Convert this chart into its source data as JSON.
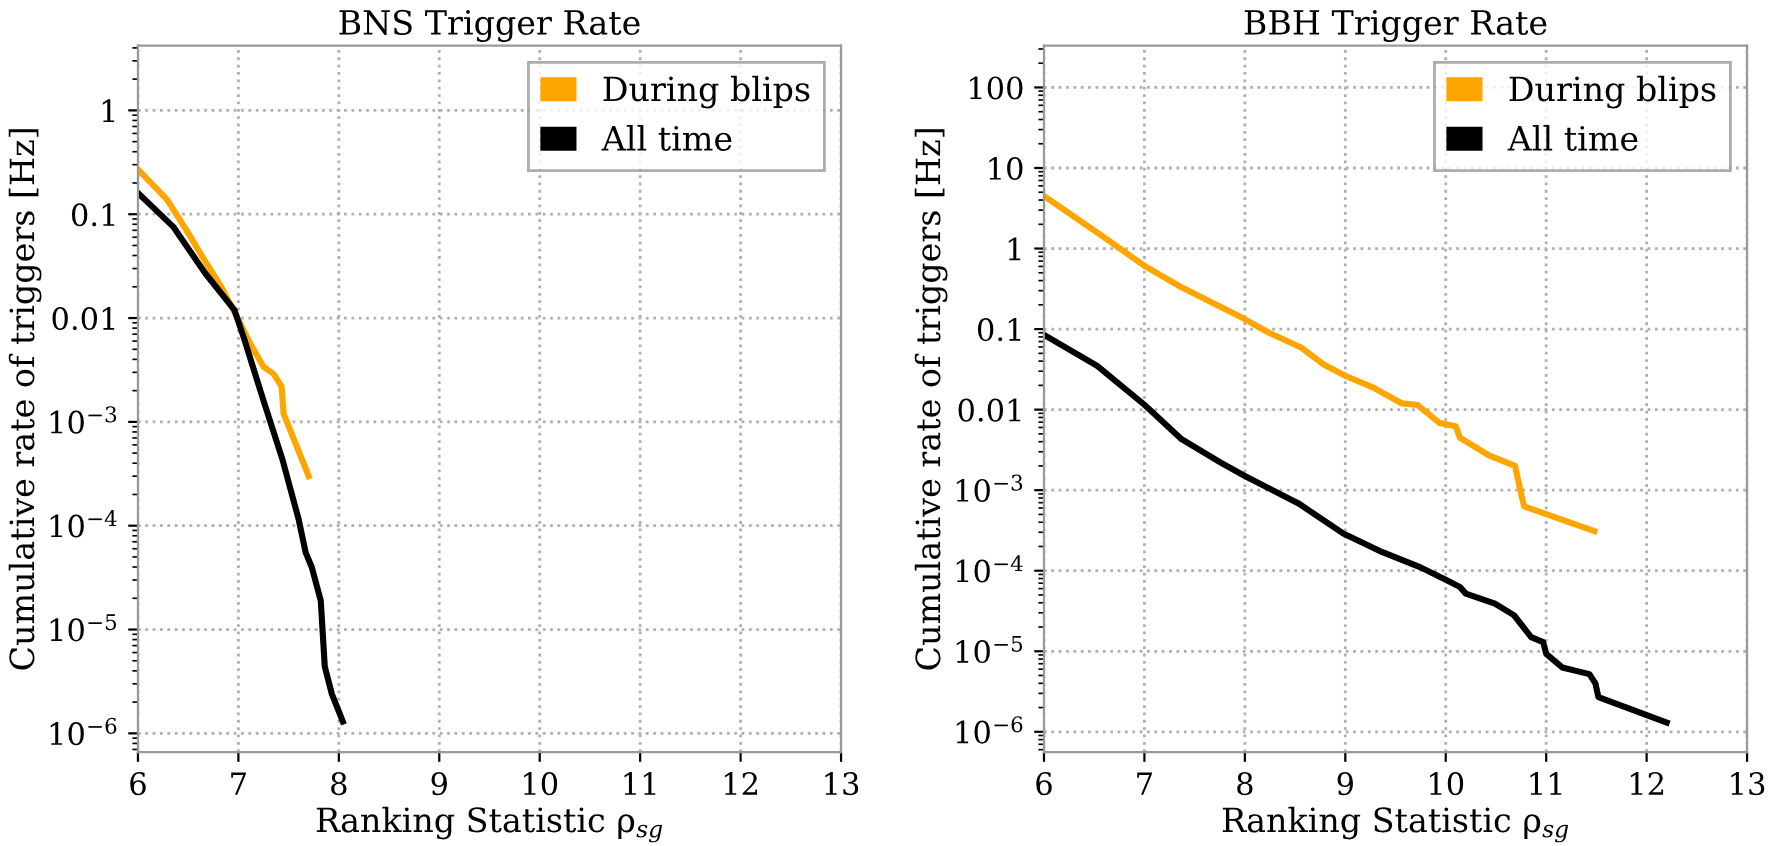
{
  "chart_data": [
    {
      "type": "line",
      "title": "BNS Trigger Rate",
      "xlabel": "Ranking Statistic ρ$_{sg}$",
      "ylabel": "Cumulative rate of triggers [Hz]",
      "log": "y",
      "grid": true,
      "legend": "top right",
      "line_style": "solid",
      "marker": "none",
      "xlim": [
        6,
        13
      ],
      "xticks": [
        6,
        7,
        8,
        9,
        10,
        11,
        12,
        13
      ],
      "ylim": [
        6.6e-07,
        4.2
      ],
      "yticks": [
        {
          "value": 1e-06,
          "label": "10$^{−6}$"
        },
        {
          "value": 1e-05,
          "label": "10$^{−5}$"
        },
        {
          "value": 0.0001,
          "label": "10$^{−4}$"
        },
        {
          "value": 0.001,
          "label": "10$^{−3}$"
        },
        0.01,
        0.1,
        1
      ],
      "series": [
        {
          "name": "During blips",
          "color": "#ffa500",
          "x": [
            6.0,
            6.29,
            6.48,
            6.64,
            6.83,
            7.0,
            7.13,
            7.25,
            7.35,
            7.43,
            7.45,
            7.7
          ],
          "values": [
            0.27,
            0.138,
            0.071,
            0.039,
            0.02,
            0.0096,
            0.0054,
            0.0034,
            0.0029,
            0.0022,
            0.0012,
            0.0003
          ]
        },
        {
          "name": "All time",
          "color": "#000000",
          "x": [
            6.0,
            6.35,
            6.67,
            6.96,
            7.06,
            7.25,
            7.44,
            7.6,
            7.67,
            7.73,
            7.82,
            7.86,
            7.93,
            8.04
          ],
          "values": [
            0.16,
            0.076,
            0.027,
            0.012,
            0.0062,
            0.0016,
            0.00043,
            0.000115,
            5.5e-05,
            4e-05,
            1.9e-05,
            4.4e-06,
            2.4e-06,
            1.3e-06
          ]
        }
      ]
    },
    {
      "type": "line",
      "title": "BBH Trigger Rate",
      "xlabel": "Ranking Statistic ρ$_{sg}$",
      "ylabel": "Cumulative rate of triggers [Hz]",
      "log": "y",
      "grid": true,
      "legend": "top right",
      "line_style": "solid",
      "marker": "none",
      "xlim": [
        6,
        13
      ],
      "xticks": [
        6,
        7,
        8,
        9,
        10,
        11,
        12,
        13
      ],
      "ylim": [
        5.6e-07,
        330
      ],
      "yticks": [
        {
          "value": 1e-06,
          "label": "10$^{−6}$"
        },
        {
          "value": 1e-05,
          "label": "10$^{−5}$"
        },
        {
          "value": 0.0001,
          "label": "10$^{−4}$"
        },
        {
          "value": 0.001,
          "label": "10$^{−3}$"
        },
        0.01,
        0.1,
        1,
        10,
        100
      ],
      "series": [
        {
          "name": "During blips",
          "color": "#ffa500",
          "x": [
            6.0,
            6.53,
            7.0,
            7.37,
            7.98,
            8.24,
            8.56,
            8.79,
            9.01,
            9.27,
            9.56,
            9.72,
            9.94,
            10.1,
            10.14,
            10.43,
            10.69,
            10.75,
            10.78,
            11.48
          ],
          "values": [
            4.5,
            1.58,
            0.61,
            0.33,
            0.137,
            0.09,
            0.059,
            0.036,
            0.026,
            0.019,
            0.012,
            0.0114,
            0.0068,
            0.0062,
            0.0045,
            0.0027,
            0.002,
            0.00091,
            0.00063,
            0.00031
          ]
        },
        {
          "name": "All time",
          "color": "#000000",
          "x": [
            6.0,
            6.53,
            7.0,
            7.37,
            7.76,
            8.0,
            8.53,
            8.98,
            9.37,
            9.75,
            10.01,
            10.14,
            10.2,
            10.49,
            10.68,
            10.85,
            10.97,
            11.0,
            11.16,
            11.43,
            11.49,
            11.52,
            12.2
          ],
          "values": [
            0.085,
            0.035,
            0.0115,
            0.0043,
            0.0022,
            0.0015,
            0.00069,
            0.00029,
            0.00017,
            0.00011,
            7.6e-05,
            6.3e-05,
            5.2e-05,
            3.9e-05,
            2.8e-05,
            1.5e-05,
            1.3e-05,
            9.3e-06,
            6.3e-06,
            5.2e-06,
            4e-06,
            2.7e-06,
            1.3e-06
          ]
        }
      ]
    }
  ]
}
